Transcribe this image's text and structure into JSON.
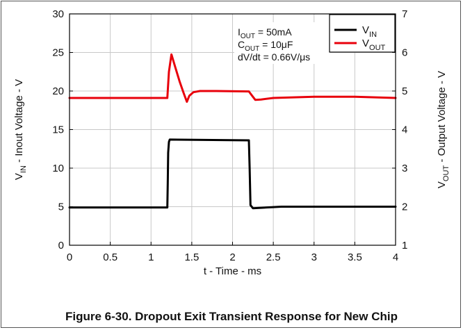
{
  "figure_caption": "Figure 6-30. Dropout Exit Transient Response for New Chip",
  "chart_data": {
    "type": "line",
    "xlabel": "t - Time - ms",
    "ylabel_left": {
      "main": "V",
      "sub": "IN",
      "rest": " - Inout Voltage - V"
    },
    "ylabel_right": {
      "main": "V",
      "sub": "OUT",
      "rest": " - Output Voltage - V"
    },
    "xlim": [
      0,
      4
    ],
    "ylim_left": [
      0,
      30
    ],
    "ylim_right": [
      1,
      7
    ],
    "x_ticks": [
      "0",
      "0.5",
      "1",
      "1.5",
      "2",
      "2.5",
      "3",
      "3.5",
      "4"
    ],
    "y_ticks_left": [
      "0",
      "5",
      "10",
      "15",
      "20",
      "25",
      "30"
    ],
    "y_ticks_right": [
      "1",
      "2",
      "3",
      "4",
      "5",
      "6",
      "7"
    ],
    "grid": true,
    "legend_position": "top-right",
    "annotations": [
      {
        "main": "I",
        "sub": "OUT",
        "rest": " = 50mA"
      },
      {
        "main": "C",
        "sub": "OUT",
        "rest": " = 10μF"
      },
      {
        "main": "dV/dt = 0.66V/μs",
        "sub": "",
        "rest": ""
      }
    ],
    "series": [
      {
        "name": {
          "main": "V",
          "sub": "IN"
        },
        "color": "#000000",
        "axis": "left",
        "x": [
          0,
          1.2,
          1.205,
          1.21,
          1.22,
          1.23,
          2.2,
          2.21,
          2.22,
          2.25,
          2.6,
          3.0,
          4.0
        ],
        "y": [
          4.9,
          4.9,
          8.0,
          12.0,
          13.4,
          13.7,
          13.6,
          10.0,
          5.2,
          4.8,
          5.0,
          5.0,
          5.0
        ]
      },
      {
        "name": {
          "main": "V",
          "sub": "OUT"
        },
        "color": "#e8000b",
        "axis": "right",
        "x": [
          0,
          1.2,
          1.22,
          1.25,
          1.3,
          1.35,
          1.4,
          1.44,
          1.47,
          1.52,
          1.6,
          1.8,
          2.2,
          2.25,
          2.28,
          2.35,
          2.5,
          3.0,
          3.5,
          4.0
        ],
        "y": [
          4.82,
          4.82,
          5.5,
          5.95,
          5.6,
          5.25,
          4.95,
          4.72,
          4.88,
          4.97,
          5.0,
          5.0,
          4.99,
          4.85,
          4.77,
          4.78,
          4.82,
          4.85,
          4.85,
          4.82
        ]
      }
    ]
  }
}
